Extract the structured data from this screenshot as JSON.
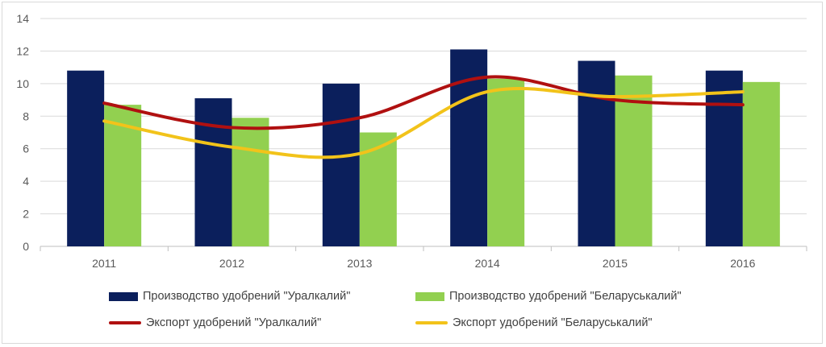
{
  "chart_data": {
    "type": "bar",
    "title": "",
    "xlabel": "",
    "ylabel": "",
    "categories": [
      "2011",
      "2012",
      "2013",
      "2014",
      "2015",
      "2016"
    ],
    "ylim": [
      0,
      14
    ],
    "yticks": [
      0,
      2,
      4,
      6,
      8,
      10,
      12,
      14
    ],
    "grid": true,
    "legend_position": "bottom",
    "series": [
      {
        "name": "Производство удобрений \"Уралкалий\"",
        "kind": "bar",
        "color": "#0b1f5c",
        "values": [
          10.8,
          9.1,
          10.0,
          12.1,
          11.4,
          10.8
        ]
      },
      {
        "name": "Производство удобрений \"Беларуськалий\"",
        "kind": "bar",
        "color": "#92d050",
        "values": [
          8.7,
          7.9,
          7.0,
          10.3,
          10.5,
          10.1
        ]
      },
      {
        "name": "Экспорт удобрений \"Уралкалий\"",
        "kind": "line",
        "color": "#b01010",
        "values": [
          8.8,
          7.3,
          7.9,
          10.4,
          9.0,
          8.7
        ]
      },
      {
        "name": "Экспорт удобрений \"Беларуськалий\"",
        "kind": "line",
        "color": "#f2c31a",
        "values": [
          7.7,
          6.1,
          5.7,
          9.5,
          9.2,
          9.5
        ]
      }
    ]
  }
}
